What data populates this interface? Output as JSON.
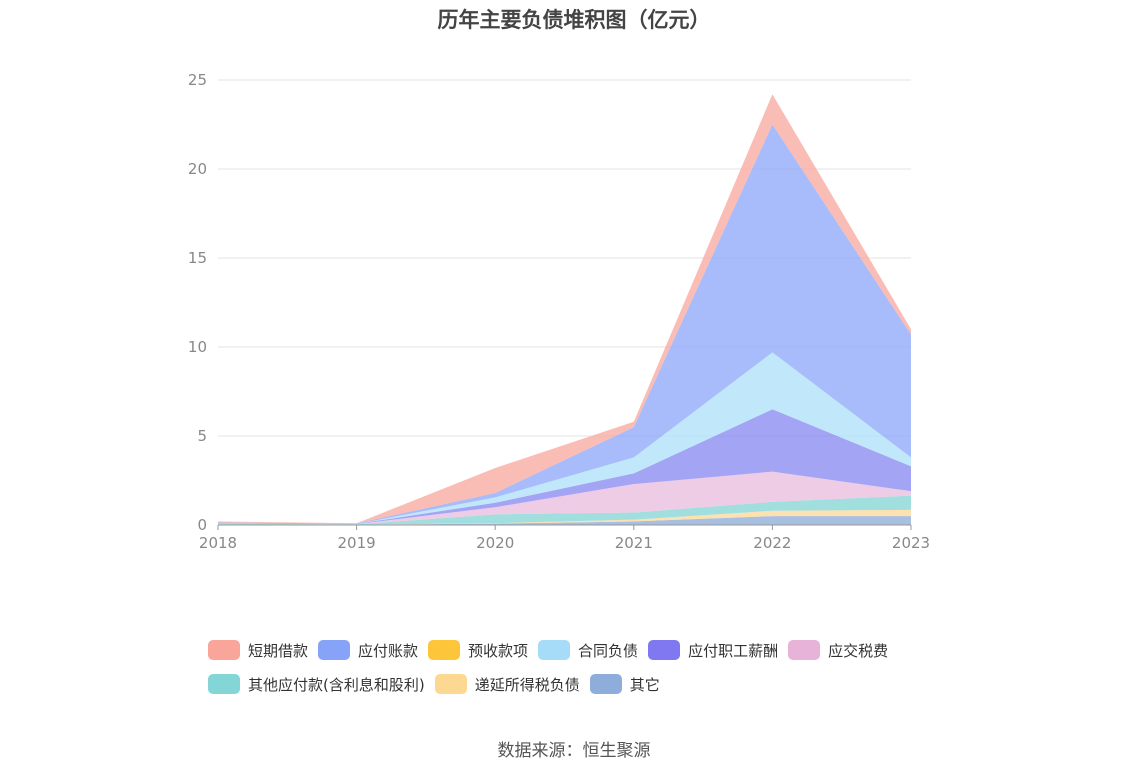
{
  "title": "历年主要负债堆积图（亿元）",
  "source": "数据来源：恒生聚源",
  "chart_data": {
    "type": "area",
    "stacked": true,
    "categories": [
      "2018",
      "2019",
      "2020",
      "2021",
      "2022",
      "2023"
    ],
    "ylim": [
      0,
      25
    ],
    "yticks": [
      0,
      5,
      10,
      15,
      20,
      25
    ],
    "grid": true,
    "legend_position": "bottom",
    "series": [
      {
        "name": "其它",
        "color": "#8eadd8",
        "values": [
          0.02,
          0.02,
          0.08,
          0.2,
          0.5,
          0.5
        ]
      },
      {
        "name": "递延所得税负债",
        "color": "#fdd99a",
        "values": [
          0.0,
          0.0,
          0.02,
          0.1,
          0.3,
          0.35
        ]
      },
      {
        "name": "其他应付款(含利息和股利)",
        "color": "#86d6d6",
        "values": [
          0.04,
          0.02,
          0.5,
          0.4,
          0.5,
          0.8
        ]
      },
      {
        "name": "应交税费",
        "color": "#e9bedf",
        "values": [
          0.02,
          0.01,
          0.4,
          1.6,
          1.7,
          0.25
        ]
      },
      {
        "name": "应付职工薪酬",
        "color": "#8a8af2",
        "values": [
          0.02,
          0.01,
          0.25,
          0.6,
          3.5,
          1.4
        ]
      },
      {
        "name": "合同负债",
        "color": "#aee1f9",
        "values": [
          0.0,
          0.0,
          0.3,
          0.9,
          3.2,
          0.5
        ]
      },
      {
        "name": "应付账款",
        "color": "#8fa8f8",
        "values": [
          0.04,
          0.03,
          0.25,
          1.7,
          12.8,
          6.9
        ]
      },
      {
        "name": "短期借款",
        "color": "#f9aaa0",
        "values": [
          0.06,
          0.01,
          1.4,
          0.3,
          1.7,
          0.3
        ]
      }
    ]
  },
  "legend": [
    {
      "label": "短期借款",
      "color": "#f9a59a"
    },
    {
      "label": "应付账款",
      "color": "#87a3f8"
    },
    {
      "label": "预收款项",
      "color": "#fdc63a"
    },
    {
      "label": "合同负债",
      "color": "#a6dcf7"
    },
    {
      "label": "应付职工薪酬",
      "color": "#7f78f0"
    },
    {
      "label": "应交税费",
      "color": "#e8b3d9"
    },
    {
      "label": "其他应付款(含利息和股利)",
      "color": "#84d6d6"
    },
    {
      "label": "递延所得税负债",
      "color": "#fdd893"
    },
    {
      "label": "其它",
      "color": "#8faddb"
    }
  ]
}
